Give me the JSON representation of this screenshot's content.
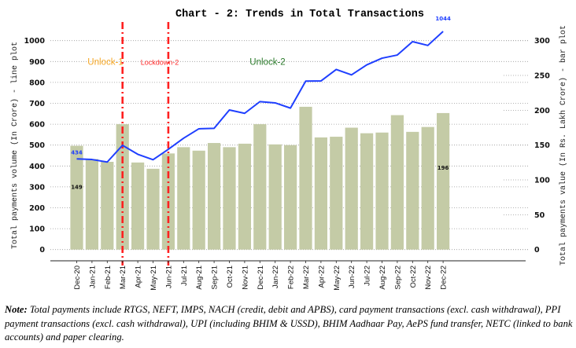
{
  "chart_data": {
    "type": "bar",
    "title": "Chart - 2: Trends in Total Transactions",
    "xlabel": "",
    "ylabel_left": "Total payments volume (In Crore) - line plot",
    "ylabel_right": "Total payments value (In Rs. Lakh Crore) - bar plot",
    "ylim_left": [
      0,
      1000
    ],
    "ylim_right": [
      0,
      300
    ],
    "yticks_left": [
      0,
      100,
      200,
      300,
      400,
      500,
      600,
      700,
      800,
      900,
      1000
    ],
    "yticks_right": [
      0,
      50,
      100,
      150,
      200,
      250,
      300
    ],
    "grid": true,
    "categories": [
      "Dec-20",
      "Jan-21",
      "Feb-21",
      "Mar-21",
      "Apr-21",
      "May-21",
      "Jun-21",
      "Jul-21",
      "Aug-21",
      "Sep-21",
      "Oct-21",
      "Nov-21",
      "Dec-21",
      "Jan-22",
      "Feb-22",
      "Mar-22",
      "Apr-22",
      "May-22",
      "Jun-22",
      "Jul-22",
      "Aug-22",
      "Sep-22",
      "Oct-22",
      "Nov-22",
      "Dec-22"
    ],
    "series": [
      {
        "name": "Total payments value (In Rs. Lakh Crore)",
        "type": "bar",
        "axis": "right",
        "color": "#c4cba6",
        "values": [
          149,
          130,
          126,
          180,
          125,
          116,
          138,
          147,
          142,
          153,
          147,
          152,
          180,
          151,
          150,
          205,
          161,
          162,
          175,
          167,
          168,
          193,
          169,
          176,
          196
        ]
      },
      {
        "name": "Total payments volume (In Crore)",
        "type": "line",
        "axis": "left",
        "color": "#1f3fff",
        "values": [
          434,
          431,
          419,
          499,
          456,
          430,
          480,
          533,
          578,
          580,
          668,
          652,
          708,
          702,
          677,
          806,
          807,
          862,
          836,
          884,
          916,
          931,
          995,
          977,
          1044
        ]
      }
    ],
    "data_labels": [
      {
        "series": "line",
        "category": "Dec-20",
        "text": "434",
        "color": "#1f3fff"
      },
      {
        "series": "bar",
        "category": "Dec-20",
        "text": "149",
        "color": "#111111"
      },
      {
        "series": "line",
        "category": "Dec-22",
        "text": "1044",
        "color": "#1f3fff"
      },
      {
        "series": "bar",
        "category": "Dec-22",
        "text": "196",
        "color": "#111111"
      }
    ],
    "phase_dividers": [
      {
        "between": [
          "Feb-21",
          "Mar-21"
        ],
        "position": "Mar-21",
        "color": "#ff2020"
      },
      {
        "between": [
          "May-21",
          "Jun-21"
        ],
        "position": "Jun-21",
        "color": "#ff2020"
      }
    ],
    "annotations": [
      {
        "text": "Unlock-1",
        "color": "#f5a623",
        "near": "Feb-21",
        "y_left": 900
      },
      {
        "text": "Lockdown-2",
        "color": "#ff2a2a",
        "near": "Apr-21",
        "y_left": 900
      },
      {
        "text": "Unlock-2",
        "color": "#2a7a2a",
        "near": "Oct-21",
        "y_left": 900
      }
    ],
    "legend": "none"
  },
  "note": {
    "label": "Note:",
    "text": " Total payments include RTGS, NEFT, IMPS, NACH (credit, debit and APBS), card payment transactions (excl. cash withdrawal), PPI payment transactions (excl. cash withdrawal), UPI (including BHIM & USSD), BHIM Aadhaar Pay, AePS fund transfer, NETC (linked to bank accounts) and paper clearing."
  }
}
